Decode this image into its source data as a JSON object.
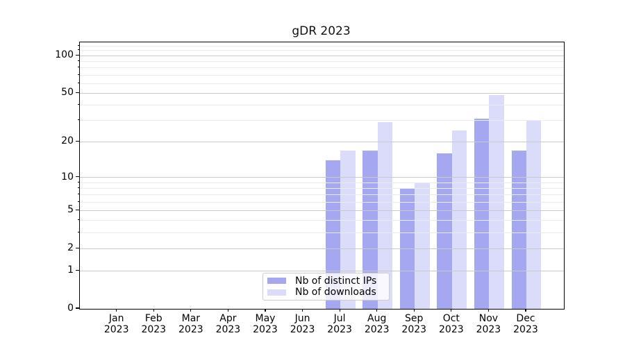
{
  "title": "gDR 2023",
  "chart_data": {
    "type": "bar",
    "title": "gDR 2023",
    "x_tick_labels": [
      {
        "month": "Jan",
        "year": "2023"
      },
      {
        "month": "Feb",
        "year": "2023"
      },
      {
        "month": "Mar",
        "year": "2023"
      },
      {
        "month": "Apr",
        "year": "2023"
      },
      {
        "month": "May",
        "year": "2023"
      },
      {
        "month": "Jun",
        "year": "2023"
      },
      {
        "month": "Jul",
        "year": "2023"
      },
      {
        "month": "Aug",
        "year": "2023"
      },
      {
        "month": "Sep",
        "year": "2023"
      },
      {
        "month": "Oct",
        "year": "2023"
      },
      {
        "month": "Nov",
        "year": "2023"
      },
      {
        "month": "Dec",
        "year": "2023"
      }
    ],
    "series": [
      {
        "name": "Nb of distinct IPs",
        "color": "#a5a7f0",
        "values": [
          0,
          0,
          0,
          0,
          0,
          0,
          14,
          17,
          8,
          16,
          31,
          17
        ]
      },
      {
        "name": "Nb of downloads",
        "color": "#dadcf9",
        "values": [
          0,
          0,
          0,
          0,
          0,
          0,
          17,
          29,
          9,
          25,
          48,
          30
        ]
      }
    ],
    "yscale": "log1p",
    "ylim": [
      0,
      128
    ],
    "y_major_ticks": [
      0,
      1,
      2,
      5,
      10,
      20,
      50,
      100
    ],
    "y_minor_ticks": [
      3,
      4,
      6,
      7,
      8,
      9,
      30,
      40,
      60,
      70,
      80,
      90,
      110,
      120
    ],
    "grid": "both",
    "grid_on_top_of_bars": true,
    "legend_position": "lower center",
    "colors": {
      "major_grid": "#c9c9c9",
      "minor_grid": "#ebebeb",
      "axis": "#000000",
      "background": "#ffffff"
    }
  }
}
